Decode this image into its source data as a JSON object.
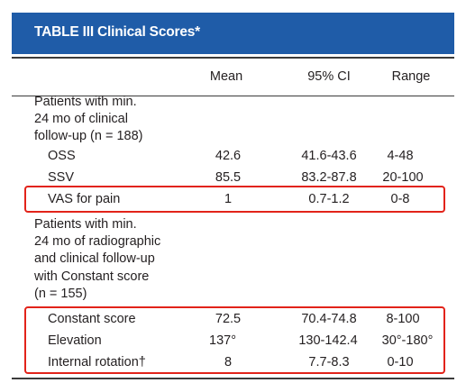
{
  "table": {
    "title": "TABLE III Clinical Scores*",
    "columns": [
      "Mean",
      "95% CI",
      "Range"
    ],
    "groups": [
      {
        "label_lines": [
          "Patients with min.",
          "24 mo of clinical",
          "follow-up (n = 188)"
        ],
        "rows": [
          {
            "label": "OSS",
            "mean": "42.6",
            "ci": "41.6-43.6",
            "range": "4-48"
          },
          {
            "label": "SSV",
            "mean": "85.5",
            "ci": "83.2-87.8",
            "range": "20-100"
          },
          {
            "label": "VAS for pain",
            "mean": "1",
            "ci": "0.7-1.2",
            "range": "0-8"
          }
        ]
      },
      {
        "label_lines": [
          "Patients with min.",
          "24 mo of radiographic",
          "and clinical follow-up",
          "with Constant score",
          "(n = 155)"
        ],
        "rows": [
          {
            "label": "Constant score",
            "mean": "72.5",
            "ci": "70.4-74.8",
            "range": "8-100"
          },
          {
            "label": "Elevation",
            "mean": "137°",
            "ci": "130-142.4",
            "range": "30°-180°"
          },
          {
            "label": "Internal rotation†",
            "mean": "8",
            "ci": "7.7-8.3",
            "range": "0-10"
          }
        ]
      }
    ]
  },
  "colors": {
    "title_bar": "#1f5ca8",
    "highlight": "#e2231a"
  }
}
